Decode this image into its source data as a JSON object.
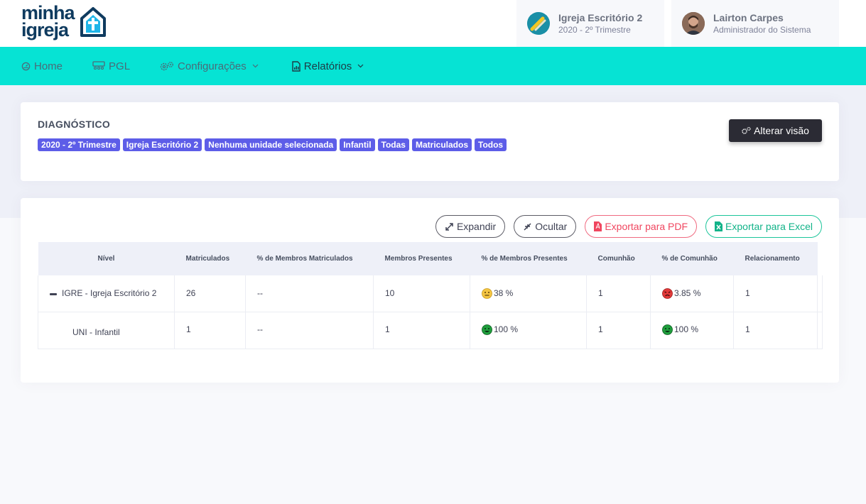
{
  "logo": {
    "line1": "minha",
    "line2": "igreja"
  },
  "org": {
    "name": "Igreja Escritório 2",
    "period": "2020 - 2º Trimestre"
  },
  "user": {
    "name": "Lairton Carpes",
    "role": "Administrador do Sistema"
  },
  "nav": {
    "home": "Home",
    "pgl": "PGL",
    "config": "Configurações",
    "reports": "Relatórios"
  },
  "diagnostic": {
    "title": "DIAGNÓSTICO",
    "badges": [
      "2020 - 2º Trimestre",
      "Igreja Escritório 2",
      "Nenhuma unidade selecionada",
      "Infantil",
      "Todas",
      "Matriculados",
      "Todos"
    ],
    "change_view": "Alterar visão"
  },
  "actions": {
    "expand": "Expandir",
    "hide": "Ocultar",
    "pdf": "Exportar para PDF",
    "excel": "Exportar para Excel"
  },
  "table": {
    "headers": [
      "Nível",
      "Matriculados",
      "% de Membros Matriculados",
      "Membros Presentes",
      "% de Membros Presentes",
      "Comunhão",
      "% de Comunhão",
      "Relacionamento"
    ],
    "rows": [
      {
        "nivel": "IGRE - Igreja Escritório 2",
        "matriculados": "26",
        "pct_matriculados": "--",
        "presentes": "10",
        "pct_presentes": "38 %",
        "pct_presentes_status": "neutral",
        "comunhao": "1",
        "pct_comunhao": "3.85 %",
        "pct_comunhao_status": "bad",
        "relacionamento": "1"
      },
      {
        "nivel": "UNI - Infantil",
        "matriculados": "1",
        "pct_matriculados": "--",
        "presentes": "1",
        "pct_presentes": "100 %",
        "pct_presentes_status": "good",
        "comunhao": "1",
        "pct_comunhao": "100 %",
        "pct_comunhao_status": "good",
        "relacionamento": "1"
      }
    ]
  },
  "colors": {
    "nav_bg": "#06e3d4",
    "badge": "#5d5de8",
    "logo": "#0f3b5f",
    "pdf": "#f0465f",
    "excel": "#12b389"
  }
}
